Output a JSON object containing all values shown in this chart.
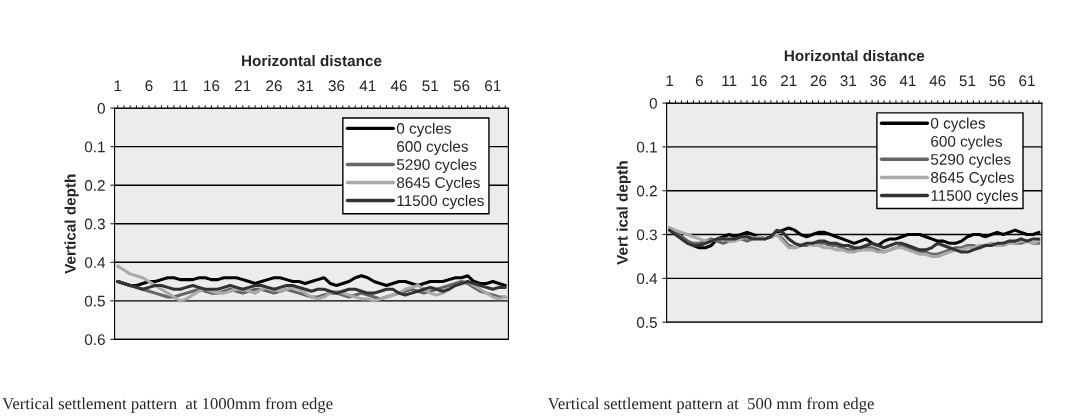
{
  "chart_data": [
    {
      "type": "line",
      "xlabel": "Horizontal distance",
      "ylabel": "Vertical depth",
      "categories": [
        "1",
        null,
        null,
        null,
        null,
        "6",
        null,
        null,
        null,
        null,
        "11",
        null,
        null,
        null,
        null,
        "16",
        null,
        null,
        null,
        null,
        "21",
        null,
        null,
        null,
        null,
        "26",
        null,
        null,
        null,
        null,
        "31",
        null,
        null,
        null,
        null,
        "36",
        null,
        null,
        null,
        null,
        "41",
        null,
        null,
        null,
        null,
        "46",
        null,
        null,
        null,
        null,
        "51",
        null,
        null,
        null,
        null,
        "56",
        null,
        null,
        null,
        null,
        "61",
        null,
        null
      ],
      "ylim": [
        0.6,
        0
      ],
      "yticks": [
        0,
        0.1,
        0.2,
        0.3,
        0.4,
        0.5,
        0.6
      ],
      "grid": "y",
      "legend": "top right",
      "marker": "none",
      "line_style": "solid",
      "annotations": [
        "Vertical settlement pattern  at 1000mm from edge"
      ],
      "series": [
        {
          "name": "0 cycles",
          "color": "#000000",
          "values": [
            0.45,
            0.455,
            0.46,
            0.46,
            0.455,
            0.45,
            0.45,
            0.445,
            0.44,
            0.44,
            0.445,
            0.445,
            0.445,
            0.44,
            0.44,
            0.445,
            0.445,
            0.44,
            0.44,
            0.44,
            0.445,
            0.45,
            0.455,
            0.45,
            0.445,
            0.44,
            0.44,
            0.445,
            0.45,
            0.45,
            0.455,
            0.45,
            0.445,
            0.44,
            0.455,
            0.46,
            0.455,
            0.45,
            0.44,
            0.435,
            0.44,
            0.45,
            0.455,
            0.46,
            0.455,
            0.45,
            0.45,
            0.455,
            0.46,
            0.455,
            0.45,
            0.45,
            0.45,
            0.445,
            0.44,
            0.44,
            0.435,
            0.45,
            0.455,
            0.455,
            0.45,
            0.455,
            0.46
          ]
        },
        {
          "name": "600 cycles",
          "values": [
            null,
            null,
            null,
            null,
            null,
            null,
            null,
            null,
            null,
            null,
            null,
            null,
            null,
            null,
            null,
            null,
            null,
            null,
            null,
            null,
            null,
            null,
            null,
            null,
            null,
            null,
            null,
            null,
            null,
            null,
            null,
            null,
            null,
            null,
            null,
            null,
            null,
            null,
            null,
            null,
            null,
            null,
            null,
            null,
            null,
            null,
            null,
            null,
            null,
            null,
            null,
            null,
            null,
            null,
            null,
            null,
            null,
            null,
            null,
            null,
            null,
            null,
            null
          ]
        },
        {
          "name": "5290 cycles",
          "color": "#666666",
          "values": [
            0.45,
            0.455,
            0.46,
            0.465,
            0.47,
            0.475,
            0.48,
            0.485,
            0.49,
            0.49,
            0.485,
            0.48,
            0.475,
            0.47,
            0.475,
            0.48,
            0.48,
            0.475,
            0.47,
            0.475,
            0.48,
            0.475,
            0.47,
            0.47,
            0.475,
            0.48,
            0.475,
            0.47,
            0.475,
            0.48,
            0.485,
            0.49,
            0.49,
            0.485,
            0.48,
            0.48,
            0.485,
            0.49,
            0.485,
            0.48,
            0.485,
            0.49,
            0.495,
            0.49,
            0.485,
            0.48,
            0.475,
            0.47,
            0.475,
            0.48,
            0.475,
            0.47,
            0.465,
            0.46,
            0.455,
            0.45,
            0.455,
            0.465,
            0.475,
            0.48,
            0.485,
            0.49,
            0.49
          ]
        },
        {
          "name": "8645 Cycles",
          "color": "#aaaaaa",
          "values": [
            0.41,
            0.42,
            0.43,
            0.435,
            0.44,
            0.45,
            0.46,
            0.47,
            0.48,
            0.49,
            0.5,
            0.495,
            0.485,
            0.475,
            0.47,
            0.475,
            0.48,
            0.48,
            0.475,
            0.47,
            0.47,
            0.475,
            0.48,
            0.47,
            0.465,
            0.47,
            0.475,
            0.47,
            0.465,
            0.47,
            0.48,
            0.49,
            0.495,
            0.49,
            0.48,
            0.475,
            0.48,
            0.485,
            0.49,
            0.495,
            0.495,
            0.5,
            0.495,
            0.49,
            0.485,
            0.48,
            0.47,
            0.465,
            0.46,
            0.47,
            0.48,
            0.485,
            0.48,
            0.47,
            0.46,
            0.455,
            0.45,
            0.46,
            0.47,
            0.48,
            0.49,
            0.495,
            0.49
          ]
        },
        {
          "name": "11500 cycles",
          "color": "#333333",
          "values": [
            0.45,
            0.455,
            0.46,
            0.465,
            0.47,
            0.465,
            0.46,
            0.46,
            0.465,
            0.47,
            0.47,
            0.465,
            0.46,
            0.465,
            0.47,
            0.47,
            0.47,
            0.465,
            0.46,
            0.465,
            0.47,
            0.465,
            0.46,
            0.46,
            0.465,
            0.47,
            0.465,
            0.46,
            0.46,
            0.465,
            0.47,
            0.475,
            0.47,
            0.47,
            0.475,
            0.48,
            0.475,
            0.47,
            0.47,
            0.475,
            0.48,
            0.48,
            0.475,
            0.47,
            0.47,
            0.48,
            0.485,
            0.48,
            0.475,
            0.47,
            0.465,
            0.47,
            0.475,
            0.47,
            0.46,
            0.455,
            0.45,
            0.455,
            0.46,
            0.465,
            0.47,
            0.465,
            0.465
          ]
        }
      ]
    },
    {
      "type": "line",
      "xlabel": "Horizontal distance",
      "ylabel": "Vert ical depth",
      "categories": [
        "1",
        null,
        null,
        null,
        null,
        "6",
        null,
        null,
        null,
        null,
        "11",
        null,
        null,
        null,
        null,
        "16",
        null,
        null,
        null,
        null,
        "21",
        null,
        null,
        null,
        null,
        "26",
        null,
        null,
        null,
        null,
        "31",
        null,
        null,
        null,
        null,
        "36",
        null,
        null,
        null,
        null,
        "41",
        null,
        null,
        null,
        null,
        "46",
        null,
        null,
        null,
        null,
        "51",
        null,
        null,
        null,
        null,
        "56",
        null,
        null,
        null,
        null,
        "61",
        null,
        null
      ],
      "ylim": [
        0.5,
        0
      ],
      "yticks": [
        0,
        0.1,
        0.2,
        0.3,
        0.4,
        0.5
      ],
      "grid": "y",
      "legend": "top right",
      "marker": "none",
      "line_style": "solid",
      "annotations": [
        "Vertical settlement pattern at  500 mm from edge"
      ],
      "series": [
        {
          "name": "0 cycles",
          "color": "#000000",
          "values": [
            0.29,
            0.295,
            0.305,
            0.315,
            0.325,
            0.33,
            0.33,
            0.325,
            0.31,
            0.305,
            0.3,
            0.305,
            0.3,
            0.295,
            0.3,
            0.305,
            0.31,
            0.305,
            0.295,
            0.29,
            0.285,
            0.29,
            0.3,
            0.305,
            0.3,
            0.295,
            0.295,
            0.3,
            0.305,
            0.31,
            0.315,
            0.32,
            0.315,
            0.31,
            0.32,
            0.325,
            0.315,
            0.31,
            0.31,
            0.305,
            0.3,
            0.3,
            0.3,
            0.305,
            0.31,
            0.315,
            0.315,
            0.32,
            0.32,
            0.315,
            0.305,
            0.3,
            0.3,
            0.305,
            0.3,
            0.295,
            0.3,
            0.295,
            0.29,
            0.295,
            0.3,
            0.3,
            0.295
          ]
        },
        {
          "name": "600 cycles",
          "values": [
            null,
            null,
            null,
            null,
            null,
            null,
            null,
            null,
            null,
            null,
            null,
            null,
            null,
            null,
            null,
            null,
            null,
            null,
            null,
            null,
            null,
            null,
            null,
            null,
            null,
            null,
            null,
            null,
            null,
            null,
            null,
            null,
            null,
            null,
            null,
            null,
            null,
            null,
            null,
            null,
            null,
            null,
            null,
            null,
            null,
            null,
            null,
            null,
            null,
            null,
            null,
            null,
            null,
            null,
            null,
            null,
            null,
            null,
            null,
            null,
            null,
            null,
            null
          ]
        },
        {
          "name": "5290 cycles",
          "color": "#666666",
          "values": [
            0.285,
            0.295,
            0.305,
            0.315,
            0.32,
            0.32,
            0.315,
            0.31,
            0.315,
            0.32,
            0.315,
            0.31,
            0.31,
            0.315,
            0.31,
            0.305,
            0.31,
            0.305,
            0.3,
            0.31,
            0.325,
            0.33,
            0.325,
            0.325,
            0.32,
            0.32,
            0.32,
            0.325,
            0.325,
            0.33,
            0.335,
            0.335,
            0.335,
            0.33,
            0.33,
            0.335,
            0.34,
            0.335,
            0.33,
            0.325,
            0.33,
            0.335,
            0.34,
            0.34,
            0.345,
            0.345,
            0.34,
            0.335,
            0.33,
            0.33,
            0.325,
            0.325,
            0.33,
            0.325,
            0.32,
            0.325,
            0.32,
            0.315,
            0.32,
            0.32,
            0.315,
            0.32,
            0.32
          ]
        },
        {
          "name": "8645 Cycles",
          "color": "#aaaaaa",
          "values": [
            0.285,
            0.29,
            0.295,
            0.3,
            0.305,
            0.31,
            0.315,
            0.315,
            0.31,
            0.31,
            0.315,
            0.315,
            0.31,
            0.305,
            0.31,
            0.305,
            0.31,
            0.305,
            0.3,
            0.315,
            0.33,
            0.33,
            0.325,
            0.32,
            0.325,
            0.325,
            0.33,
            0.33,
            0.335,
            0.335,
            0.34,
            0.34,
            0.335,
            0.335,
            0.335,
            0.34,
            0.34,
            0.335,
            0.33,
            0.33,
            0.335,
            0.34,
            0.345,
            0.345,
            0.35,
            0.35,
            0.345,
            0.34,
            0.335,
            0.335,
            0.33,
            0.33,
            0.325,
            0.325,
            0.32,
            0.325,
            0.325,
            0.32,
            0.32,
            0.315,
            0.315,
            0.32,
            0.315
          ]
        },
        {
          "name": "11500 cycles",
          "color": "#333333",
          "values": [
            0.29,
            0.3,
            0.31,
            0.32,
            0.325,
            0.325,
            0.32,
            0.315,
            0.31,
            0.31,
            0.31,
            0.31,
            0.305,
            0.305,
            0.31,
            0.31,
            0.31,
            0.305,
            0.29,
            0.295,
            0.31,
            0.32,
            0.325,
            0.32,
            0.32,
            0.315,
            0.315,
            0.32,
            0.32,
            0.325,
            0.325,
            0.33,
            0.33,
            0.325,
            0.32,
            0.325,
            0.33,
            0.325,
            0.32,
            0.32,
            0.325,
            0.33,
            0.335,
            0.335,
            0.33,
            0.32,
            0.325,
            0.33,
            0.335,
            0.34,
            0.34,
            0.335,
            0.33,
            0.325,
            0.325,
            0.32,
            0.32,
            0.315,
            0.315,
            0.31,
            0.315,
            0.31,
            0.31
          ]
        }
      ]
    }
  ]
}
